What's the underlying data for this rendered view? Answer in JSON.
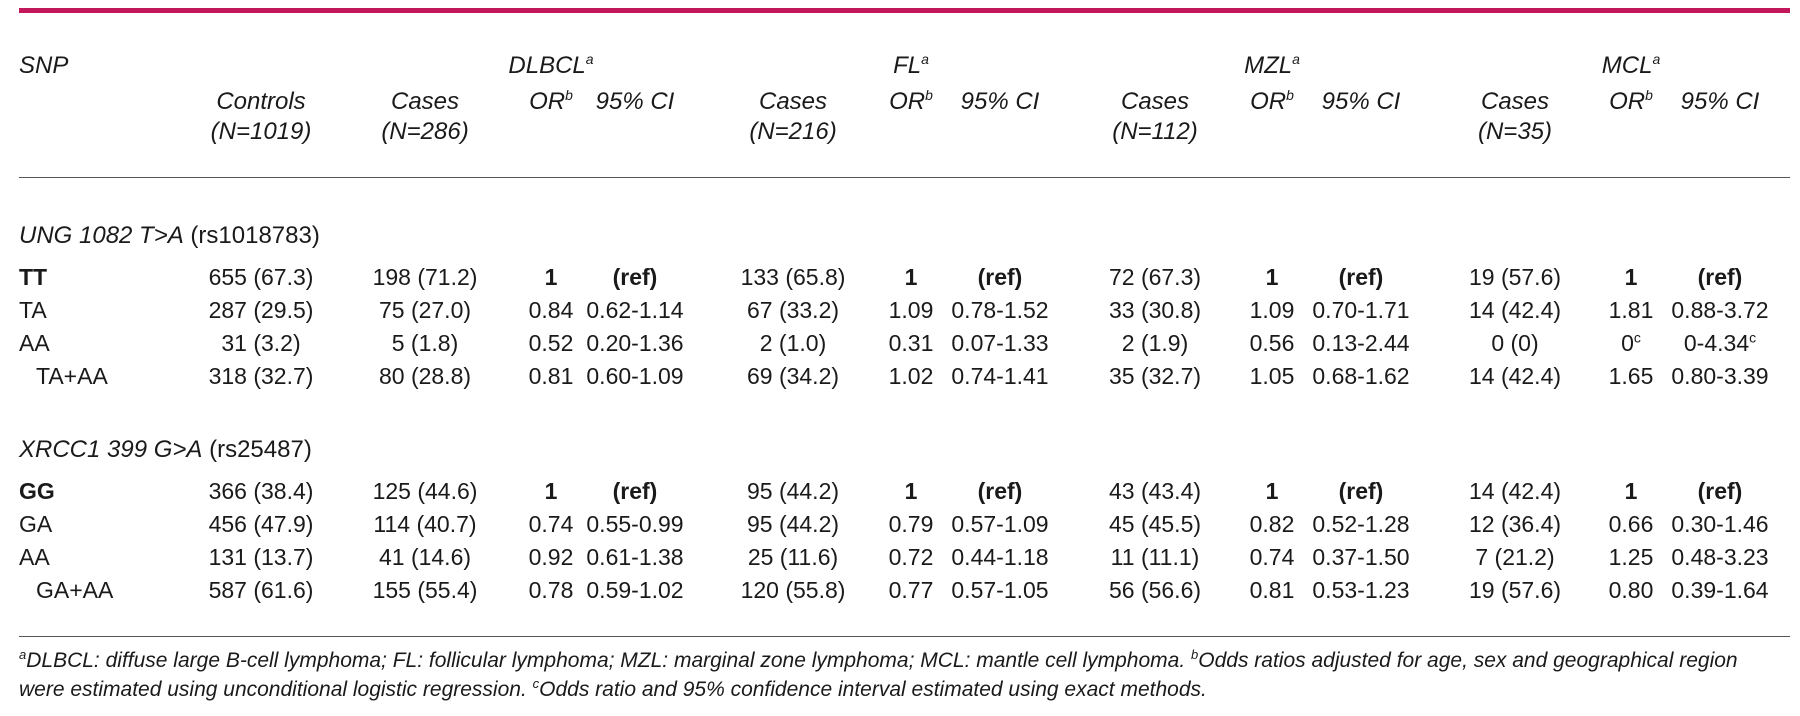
{
  "header": {
    "snp": "SNP",
    "controls_label": "Controls",
    "controls_n": "(N=1019)",
    "groups": [
      {
        "name": "DLBCL",
        "sup": "a",
        "cases_label": "Cases",
        "cases_n": "(N=286)",
        "or_label": "OR",
        "or_sup": "b",
        "ci_label": "95% CI"
      },
      {
        "name": "FL",
        "sup": "a",
        "cases_label": "Cases",
        "cases_n": "(N=216)",
        "or_label": "OR",
        "or_sup": "b",
        "ci_label": "95% CI"
      },
      {
        "name": "MZL",
        "sup": "a",
        "cases_label": "Cases",
        "cases_n": "(N=112)",
        "or_label": "OR",
        "or_sup": "b",
        "ci_label": "95% CI"
      },
      {
        "name": "MCL",
        "sup": "a",
        "cases_label": "Cases",
        "cases_n": "(N=35)",
        "or_label": "OR",
        "or_sup": "b",
        "ci_label": "95% CI"
      }
    ]
  },
  "sections": [
    {
      "title_italic": "UNG 1082 T>A",
      "title_rs": " (rs1018783)",
      "rows": [
        {
          "label": "TT",
          "bold": true,
          "controls": "655 (67.3)",
          "cells": [
            [
              "198 (71.2)",
              "1",
              "(ref)"
            ],
            [
              "133 (65.8)",
              "1",
              "(ref)"
            ],
            [
              "72 (67.3)",
              "1",
              "(ref)"
            ],
            [
              "19 (57.6)",
              "1",
              "(ref)"
            ]
          ]
        },
        {
          "label": "TA",
          "bold": false,
          "controls": "287 (29.5)",
          "cells": [
            [
              "75 (27.0)",
              "0.84",
              "0.62-1.14"
            ],
            [
              "67 (33.2)",
              "1.09",
              "0.78-1.52"
            ],
            [
              "33 (30.8)",
              "1.09",
              "0.70-1.71"
            ],
            [
              "14 (42.4)",
              "1.81",
              "0.88-3.72"
            ]
          ]
        },
        {
          "label": "AA",
          "bold": false,
          "controls": "31 (3.2)",
          "cells": [
            [
              "5 (1.8)",
              "0.52",
              "0.20-1.36"
            ],
            [
              "2 (1.0)",
              "0.31",
              "0.07-1.33"
            ],
            [
              "2 (1.9)",
              "0.56",
              "0.13-2.44"
            ],
            [
              "0 (0)",
              "0",
              "0-4.34"
            ]
          ]
        },
        {
          "label": "TA+AA",
          "bold": false,
          "controls": "318 (32.7)",
          "cells": [
            [
              "80 (28.8)",
              "0.81",
              "0.60-1.09"
            ],
            [
              "69 (34.2)",
              "1.02",
              "0.74-1.41"
            ],
            [
              "35 (32.7)",
              "1.05",
              "0.68-1.62"
            ],
            [
              "14 (42.4)",
              "1.65",
              "0.80-3.39"
            ]
          ]
        }
      ]
    },
    {
      "title_italic": "XRCC1 399 G>A",
      "title_rs": " (rs25487)",
      "rows": [
        {
          "label": "GG",
          "bold": true,
          "controls": "366 (38.4)",
          "cells": [
            [
              "125 (44.6)",
              "1",
              "(ref)"
            ],
            [
              "95 (44.2)",
              "1",
              "(ref)"
            ],
            [
              "43 (43.4)",
              "1",
              "(ref)"
            ],
            [
              "14 (42.4)",
              "1",
              "(ref)"
            ]
          ]
        },
        {
          "label": "GA",
          "bold": false,
          "controls": "456 (47.9)",
          "cells": [
            [
              "114 (40.7)",
              "0.74",
              "0.55-0.99"
            ],
            [
              "95 (44.2)",
              "0.79",
              "0.57-1.09"
            ],
            [
              "45 (45.5)",
              "0.82",
              "0.52-1.28"
            ],
            [
              "12 (36.4)",
              "0.66",
              "0.30-1.46"
            ]
          ]
        },
        {
          "label": "AA",
          "bold": false,
          "controls": "131 (13.7)",
          "cells": [
            [
              "41 (14.6)",
              "0.92",
              "0.61-1.38"
            ],
            [
              "25 (11.6)",
              "0.72",
              "0.44-1.18"
            ],
            [
              "11 (11.1)",
              "0.74",
              "0.37-1.50"
            ],
            [
              "7 (21.2)",
              "1.25",
              "0.48-3.23"
            ]
          ]
        },
        {
          "label": "GA+AA",
          "bold": false,
          "controls": "587 (61.6)",
          "cells": [
            [
              "155 (55.4)",
              "0.78",
              "0.59-1.02"
            ],
            [
              "120 (55.8)",
              "0.77",
              "0.57-1.05"
            ],
            [
              "56 (56.6)",
              "0.81",
              "0.53-1.23"
            ],
            [
              "19 (57.6)",
              "0.80",
              "0.39-1.64"
            ]
          ]
        }
      ]
    }
  ],
  "mcl_aa_sup": "c",
  "footnote": {
    "a_mark": "a",
    "a_text": "DLBCL: diffuse large B-cell lymphoma; FL: follicular lymphoma; MZL: marginal zone lymphoma; MCL: mantle cell lymphoma.",
    "b_mark": "b",
    "b_text": "Odds ratios adjusted for age, sex and geographical region were estimated using unconditional logistic regression.",
    "c_mark": "c",
    "c_text": "Odds ratio and 95% confidence interval estimated using exact methods."
  },
  "colors": {
    "accent": "#c2185b",
    "rule": "#555555",
    "text": "#1a1a1a"
  }
}
